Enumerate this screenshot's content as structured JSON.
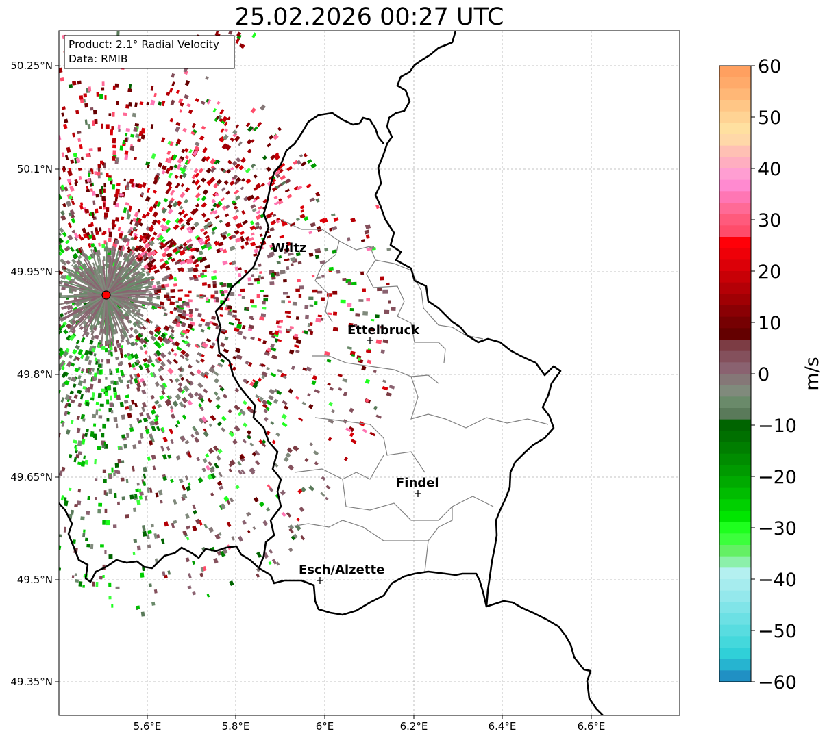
{
  "title": "25.02.2026 00:27 UTC",
  "info_box": {
    "product": "Product: 2.1° Radial Velocity",
    "data_source": "Data: RMIB"
  },
  "lat_ticks": [
    "50.25°N",
    "50.1°N",
    "49.95°N",
    "49.8°N",
    "49.65°N",
    "49.5°N",
    "49.35°N"
  ],
  "lon_ticks": [
    "5.6°E",
    "5.8°E",
    "6°E",
    "6.2°E",
    "6.4°E",
    "6.6°E"
  ],
  "cities": [
    {
      "name": "Wiltz",
      "marker": false
    },
    {
      "name": "Ettelbruck",
      "marker": true
    },
    {
      "name": "Findel",
      "marker": true
    },
    {
      "name": "Esch/Alzette",
      "marker": true
    }
  ],
  "colorbar": {
    "unit": "m/s",
    "ticks": [
      "60",
      "50",
      "40",
      "30",
      "20",
      "10",
      "0",
      "−10",
      "−20",
      "−30",
      "−40",
      "−50",
      "−60"
    ],
    "colors_top_to_bottom": [
      "#ffa060",
      "#ffaa6a",
      "#ffb776",
      "#ffc686",
      "#ffd394",
      "#ffe0a0",
      "#ffd8a8",
      "#ffc0b4",
      "#ffaec0",
      "#ff9ed2",
      "#ff8ad0",
      "#ff76b4",
      "#ff6a96",
      "#ff5a7c",
      "#ff4c6a",
      "#ff0008",
      "#ee0008",
      "#dc0008",
      "#c80006",
      "#b40006",
      "#a00004",
      "#8a0004",
      "#760002",
      "#640000",
      "#7c3c44",
      "#84505c",
      "#8a6270",
      "#857777",
      "#808a7c",
      "#6a8a6a",
      "#5a7a5a",
      "#006400",
      "#007000",
      "#007e00",
      "#008c00",
      "#009a00",
      "#00aa00",
      "#00bc00",
      "#00d000",
      "#00e600",
      "#1eff1e",
      "#3cff3c",
      "#64f064",
      "#8cf0aa",
      "#b4f0f0",
      "#a6ecee",
      "#94e8ec",
      "#80e4e8",
      "#6ce0e4",
      "#58dce0",
      "#44d8dc",
      "#30d0d8",
      "#26b4d0",
      "#2090c4"
    ]
  },
  "colors": {
    "border": "#000000",
    "canton": "#808080",
    "grid": "#b0b0b0",
    "radar_site": "#ff0000"
  }
}
